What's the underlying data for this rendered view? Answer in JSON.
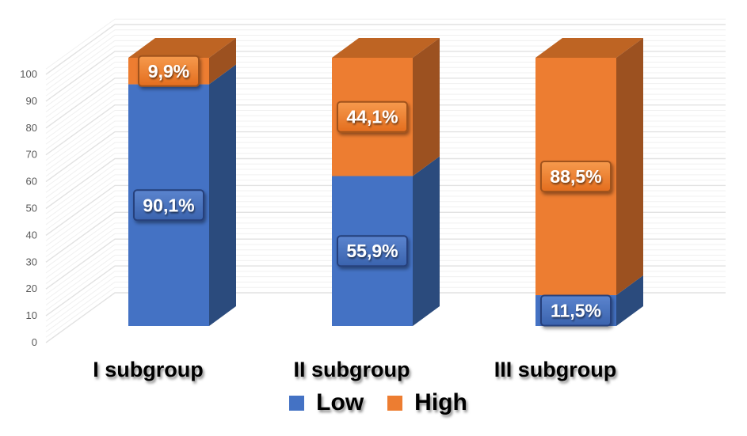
{
  "chart_data": {
    "type": "bar",
    "subtype": "3d-100-percent-stacked-column",
    "title": "",
    "categories": [
      "I subgroup",
      "II subgroup",
      "III subgroup"
    ],
    "series": [
      {
        "name": "Low",
        "color": "#4472C4",
        "values": [
          90.1,
          55.9,
          11.5
        ],
        "data_labels": [
          "90,1%",
          "55,9%",
          "11,5%"
        ],
        "face": {
          "front": "#4472C4",
          "side": "#2B4B7D",
          "top": "#355992"
        },
        "badge": {
          "light": "#5B84CE",
          "dark": "#3A63AE",
          "border": "#26417B"
        }
      },
      {
        "name": "High",
        "color": "#ED7D31",
        "values": [
          9.9,
          44.1,
          88.5
        ],
        "data_labels": [
          "9,9%",
          "44,1%",
          "88,5%"
        ],
        "face": {
          "front": "#ED7D31",
          "side": "#9C5120",
          "top": "#BE6423"
        },
        "badge": {
          "light": "#F69A4D",
          "dark": "#E36D1E",
          "border": "#A1521C"
        }
      }
    ],
    "y_axis": {
      "min": 0,
      "max": 100,
      "tick_step": 10,
      "tick_labels": [
        "0",
        "10",
        "20",
        "30",
        "40",
        "50",
        "60",
        "70",
        "80",
        "90",
        "100"
      ]
    },
    "x_axis": {
      "labels": [
        "I subgroup",
        "II subgroup",
        "III subgroup"
      ]
    },
    "legend": {
      "position": "bottom",
      "items": [
        {
          "label": "Low",
          "color": "#4472C4"
        },
        {
          "label": "High",
          "color": "#ED7D31"
        }
      ]
    },
    "grid": true,
    "ylim": [
      0,
      100
    ]
  },
  "colors": {
    "background": "#ffffff",
    "axis_text": "#595959",
    "gridline_minor": "#f0f0f0",
    "gridline_major": "#e2e2e2",
    "data_label_text": "#ffffff",
    "category_text": "#000000",
    "legend_text": "#000000"
  }
}
